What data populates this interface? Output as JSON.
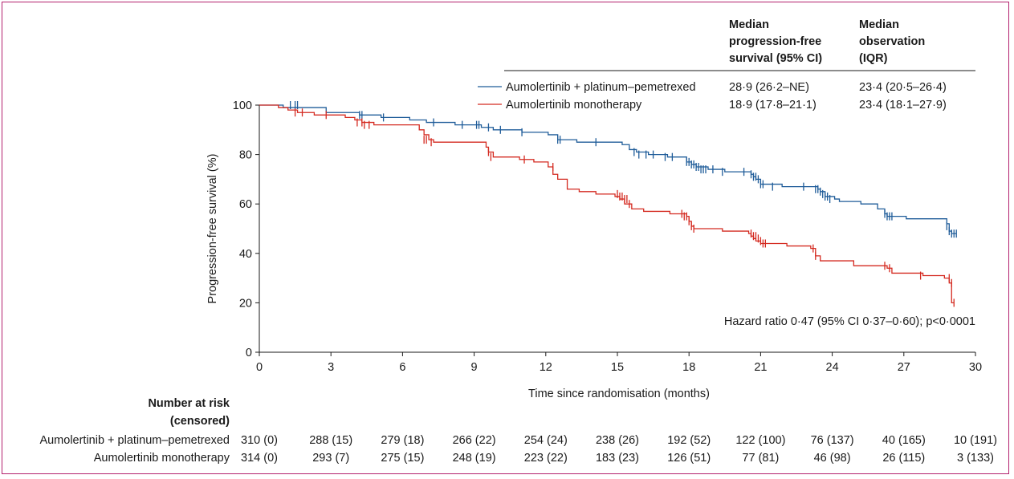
{
  "chart_data": {
    "type": "line",
    "xlabel": "Time since randomisation (months)",
    "ylabel": "Progression-free survival (%)",
    "xlim": [
      0,
      30
    ],
    "ylim": [
      0,
      100
    ],
    "x_ticks": [
      0,
      3,
      6,
      9,
      12,
      15,
      18,
      21,
      24,
      27,
      30
    ],
    "y_ticks": [
      0,
      20,
      40,
      60,
      80,
      100
    ],
    "grid": false,
    "table_header": {
      "median_pfs": [
        "Median",
        "progression-free",
        "survival (95% CI)"
      ],
      "median_obs": [
        "Median",
        "observation",
        "(IQR)"
      ]
    },
    "series": [
      {
        "name": "Aumolertinib + platinum–pemetrexed",
        "color": "#1f5c99",
        "median_pfs": "28·9 (26·2–NE)",
        "median_obs": "23·4 (20·5–26·4)",
        "x": [
          0,
          1.0,
          2.8,
          4.2,
          4.5,
          5.1,
          6.3,
          7.0,
          7.1,
          8.2,
          9.3,
          9.8,
          10.6,
          11.0,
          11.5,
          12.1,
          12.5,
          12.9,
          13.3,
          13.9,
          14.6,
          15.2,
          15.5,
          15.8,
          16.3,
          17.1,
          17.9,
          18.1,
          18.3,
          18.8,
          19.5,
          20.6,
          20.7,
          20.8,
          21.0,
          21.3,
          21.9,
          22.4,
          23.3,
          23.4,
          23.5,
          23.7,
          24.1,
          24.3,
          25.2,
          25.9,
          26.2,
          26.3,
          27.1,
          28.7,
          28.8,
          28.9,
          29.0
        ],
        "y": [
          100,
          99,
          97,
          96,
          96,
          95,
          94,
          93,
          93,
          92,
          91,
          90,
          90,
          89,
          89,
          88,
          86,
          86,
          85,
          85,
          85,
          84,
          82,
          81,
          80,
          79,
          77,
          76,
          75,
          74,
          73,
          72,
          71,
          70,
          68,
          68,
          67,
          67,
          67,
          66,
          65,
          63,
          62,
          61,
          60,
          58,
          56,
          55,
          54,
          54,
          52,
          49,
          48
        ],
        "censor_x": [
          1.3,
          1.5,
          1.6,
          4.2,
          4.3,
          5.2,
          7.3,
          8.5,
          9.1,
          9.2,
          9.6,
          10.1,
          11.0,
          12.5,
          12.6,
          14.1,
          15.7,
          15.9,
          16.2,
          16.5,
          17.0,
          17.3,
          17.9,
          18.0,
          18.1,
          18.2,
          18.3,
          18.4,
          18.5,
          18.6,
          18.7,
          19.0,
          19.4,
          20.3,
          20.6,
          20.7,
          20.8,
          20.9,
          21.0,
          21.1,
          21.5,
          22.8,
          23.3,
          23.4,
          23.5,
          23.6,
          23.7,
          23.8,
          23.9,
          26.2,
          26.3,
          26.4,
          26.5,
          28.8,
          28.9,
          29.0,
          29.1,
          29.2
        ],
        "censor_y": [
          100,
          100,
          100,
          96,
          96,
          95,
          93,
          92,
          92,
          92,
          91,
          90,
          89,
          86,
          86,
          85,
          81,
          80,
          80,
          80,
          79,
          79,
          77,
          77,
          76,
          76,
          75,
          75,
          74,
          74,
          74,
          74,
          73,
          73,
          72,
          71,
          71,
          70,
          68,
          68,
          67,
          67,
          66,
          66,
          65,
          64,
          63,
          63,
          62,
          56,
          55,
          55,
          55,
          51,
          49,
          48,
          48,
          48
        ]
      },
      {
        "name": "Aumolertinib monotherapy",
        "color": "#d42a20",
        "median_pfs": "18·9 (17·8–21·1)",
        "median_obs": "23·4 (18·1–27·9)",
        "x": [
          0,
          0.8,
          1.2,
          1.6,
          2.3,
          3.6,
          4.0,
          4.3,
          4.8,
          6.7,
          6.9,
          7.1,
          7.3,
          9.5,
          9.6,
          9.8,
          10.9,
          11.5,
          12.1,
          12.3,
          12.5,
          12.9,
          13.4,
          14.1,
          14.9,
          15.1,
          15.3,
          15.6,
          16.1,
          17.2,
          17.8,
          17.9,
          18.0,
          18.1,
          18.2,
          18.5,
          19.4,
          20.5,
          20.6,
          20.7,
          20.8,
          21.0,
          22.1,
          23.1,
          23.3,
          23.5,
          24.9,
          26.3,
          26.5,
          27.8,
          28.7,
          28.9,
          29.0
        ],
        "y": [
          100,
          99,
          98,
          97,
          96,
          95,
          94,
          93,
          92,
          90,
          88,
          86,
          85,
          83,
          81,
          79,
          78,
          77,
          75,
          72,
          70,
          66,
          65,
          64,
          63,
          62,
          60,
          58,
          57,
          56,
          56,
          55,
          53,
          51,
          50,
          50,
          49,
          48,
          47,
          46,
          45,
          44,
          43,
          42,
          39,
          37,
          35,
          34,
          32,
          31,
          30,
          28,
          20
        ],
        "censor_x": [
          1.5,
          1.8,
          2.8,
          4.1,
          4.3,
          4.4,
          4.6,
          6.9,
          7.0,
          7.2,
          9.6,
          9.7,
          11.1,
          12.3,
          15.0,
          15.1,
          15.2,
          15.3,
          15.4,
          15.5,
          17.7,
          17.8,
          17.9,
          18.0,
          18.1,
          18.2,
          20.6,
          20.7,
          20.8,
          20.9,
          21.0,
          21.1,
          21.2,
          23.2,
          23.3,
          26.2,
          26.4,
          27.7,
          28.9,
          29.0,
          29.1
        ],
        "censor_y": [
          97,
          97,
          96,
          93,
          93,
          92,
          92,
          86,
          86,
          85,
          81,
          79,
          78,
          75,
          64,
          63,
          63,
          62,
          62,
          60,
          56,
          55,
          55,
          53,
          51,
          50,
          48,
          47,
          47,
          46,
          45,
          44,
          44,
          42,
          39,
          35,
          34,
          31,
          30,
          28,
          20
        ]
      }
    ],
    "annotation": "Hazard ratio 0·47 (95% CI 0·37–0·60); p<0·0001",
    "risk_table": {
      "title": [
        "Number at risk",
        "(censored)"
      ],
      "rows": [
        {
          "label": "Aumolertinib + platinum–pemetrexed",
          "values": [
            "310 (0)",
            "288 (15)",
            "279 (18)",
            "266 (22)",
            "254 (24)",
            "238 (26)",
            "192 (52)",
            "122 (100)",
            "76 (137)",
            "40 (165)",
            "10 (191)"
          ]
        },
        {
          "label": "Aumolertinib monotherapy",
          "values": [
            "314 (0)",
            "293 (7)",
            "275 (15)",
            "248 (19)",
            "223 (22)",
            "183 (23)",
            "126 (51)",
            "77 (81)",
            "46 (98)",
            "26 (115)",
            "3 (133)"
          ]
        }
      ]
    }
  }
}
